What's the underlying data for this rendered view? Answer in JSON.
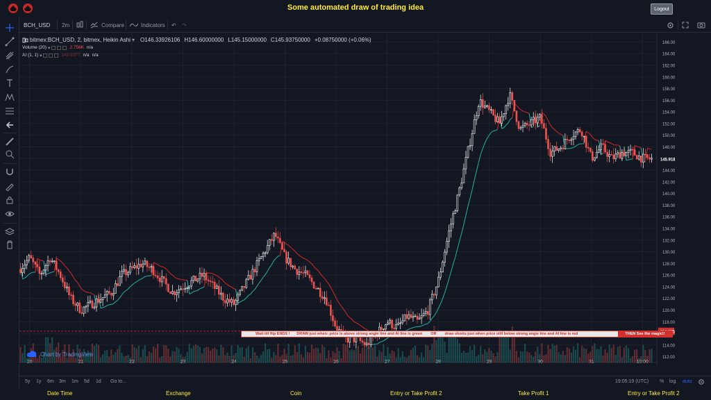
{
  "header": {
    "title": "Some automated draw of trading idea",
    "logout_label": "Logout"
  },
  "toolbar": {
    "symbol": "BCH_USD",
    "interval": "2m",
    "compare_label": "Compare",
    "indicators_label": "Indicators"
  },
  "legend": {
    "main": "bitmex:BCH_USD, 2, bitmex, Heikin Ashi",
    "open": "O146.33926106",
    "high": "H146.60000000",
    "low": "L145.15000000",
    "close": "C145.93750000",
    "change": "+0.08750000 (+0.06%)",
    "volume_label": "Volume (20)",
    "volume_value": "2.756K",
    "volume_na": "n/a",
    "ai_label": "AI (1, 1)",
    "ai_value": "145.9377",
    "ai_na1": "n/a",
    "ai_na2": "n/a"
  },
  "annotation": {
    "text1": "Wait till flip ENDS  !",
    "text2": "DRAW just when:  price is above strong angle line and AI line is green",
    "text3": "OR",
    "text4": "draw shorts just when price still below strong angle line and AI line is red",
    "end_text": "THEN See the magic!!"
  },
  "watermark": "Chart by TradingView",
  "bottombar": {
    "ranges": [
      "5y",
      "1y",
      "6m",
      "3m",
      "1m",
      "5d",
      "1d"
    ],
    "goto": "Go to...",
    "time": "19:05:19 (UTC)",
    "percent": "%",
    "log": "log",
    "auto": "auto"
  },
  "footer": [
    "Date Time",
    "Exchange",
    "Coin",
    "Entry or Take Profit 2",
    "Take Profit 1",
    "Entry or Take Profit 2"
  ],
  "colors": {
    "up": "#ffffff",
    "down": "#ef5350",
    "ai_up": "#26a69a",
    "ai_down": "#c62828",
    "vol_up": "#26a69a",
    "vol_down": "#ef5350",
    "accent": "#2962ff"
  },
  "chart_data": {
    "type": "candlestick",
    "y_axis_labels": [
      "166.00000000",
      "164.00000000",
      "162.00000000",
      "160.00000000",
      "158.00000000",
      "156.00000000",
      "154.00000000",
      "152.00000000",
      "150.00000000",
      "148.00000000",
      "146.00000000",
      "144.00000000",
      "142.00000000",
      "140.00000000",
      "138.00000000",
      "136.00000000",
      "134.00000000",
      "132.00000000",
      "130.00000000",
      "128.00000000",
      "126.00000000",
      "124.00000000",
      "122.00000000",
      "120.00000000",
      "118.00000000",
      "116.00000000",
      "114.00000000",
      "112.00000000"
    ],
    "ylim": [
      111,
      167
    ],
    "x_axis_labels": [
      "20",
      "21",
      "22",
      "23",
      "24",
      "25",
      "26",
      "27",
      "28",
      "29",
      "30",
      "31",
      "10:00"
    ],
    "xlim": [
      19.8,
      32.2
    ],
    "x_ticks": [
      20,
      21,
      22,
      23,
      24,
      25,
      26,
      27,
      28,
      29,
      30,
      31,
      32
    ],
    "current_price": "145.91822659",
    "current_price_value": 145.92,
    "marker_price": "116.37587238",
    "marker_price_value": 116.38,
    "series": [
      {
        "x": [
          19.8,
          20.0,
          20.2,
          20.4,
          20.6,
          20.8,
          21.0,
          21.2,
          21.4,
          21.6,
          21.8,
          22.0,
          22.2,
          22.4,
          22.6,
          22.8,
          23.0,
          23.2,
          23.4,
          23.6,
          23.8,
          24.0,
          24.2,
          24.4,
          24.6,
          24.8,
          25.0,
          25.2,
          25.4,
          25.6,
          25.8,
          26.0,
          26.2,
          26.4,
          26.6,
          26.8,
          27.0,
          27.2,
          27.4,
          27.6,
          27.8,
          28.0,
          28.2,
          28.4,
          28.6,
          28.8,
          29.0,
          29.2,
          29.4,
          29.6,
          29.8,
          30.0,
          30.2,
          30.4,
          30.6,
          30.8,
          31.0,
          31.2,
          31.4,
          31.6,
          31.8,
          32.0,
          32.2
        ],
        "y": [
          127,
          129,
          126,
          129,
          126,
          122,
          120,
          121,
          122,
          123,
          126,
          127,
          128,
          127,
          125,
          123,
          124,
          125,
          126,
          124,
          122,
          121,
          124,
          127,
          130,
          133,
          129,
          127,
          126,
          124,
          122,
          117,
          115,
          115,
          114,
          116,
          118,
          117,
          119,
          118,
          120,
          125,
          133,
          140,
          148,
          156,
          154,
          152,
          157,
          151,
          152,
          153,
          147,
          148,
          150,
          151,
          146,
          148,
          146,
          147,
          147,
          146,
          145.9
        ]
      }
    ]
  }
}
